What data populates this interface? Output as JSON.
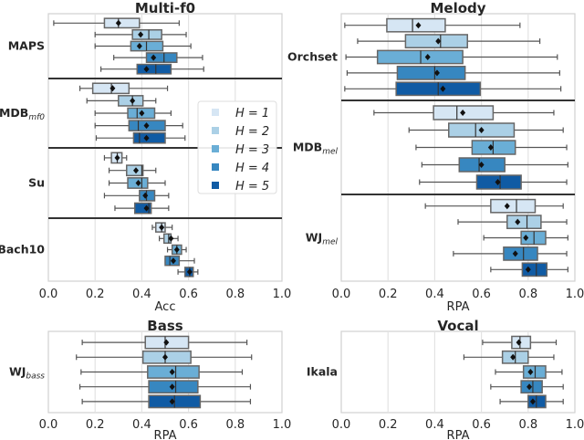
{
  "chart_data": [
    {
      "type": "box",
      "title": "Multi-f0",
      "xlabel": "Acc",
      "xlim": [
        0,
        1
      ],
      "xticks": [
        "0.0",
        "0.2",
        "0.4",
        "0.6",
        "0.8",
        "1.0"
      ],
      "grid": true,
      "box_fields": [
        "whisker_low",
        "q1",
        "median",
        "q3",
        "whisker_high",
        "mean"
      ],
      "groups": [
        {
          "label": "MAPS",
          "sub": "",
          "boxes": [
            [
              0.023,
              0.24,
              0.3,
              0.39,
              0.56,
              0.3
            ],
            [
              0.2,
              0.36,
              0.43,
              0.485,
              0.59,
              0.395
            ],
            [
              0.2,
              0.353,
              0.42,
              0.49,
              0.61,
              0.39
            ],
            [
              0.28,
              0.42,
              0.495,
              0.55,
              0.66,
              0.45
            ],
            [
              0.225,
              0.38,
              0.46,
              0.525,
              0.665,
              0.42
            ]
          ]
        },
        {
          "label": "MDB",
          "sub": "mf0",
          "boxes": [
            [
              0.135,
              0.19,
              0.27,
              0.345,
              0.51,
              0.275
            ],
            [
              0.165,
              0.3,
              0.36,
              0.405,
              0.46,
              0.36
            ],
            [
              0.2,
              0.34,
              0.38,
              0.455,
              0.525,
              0.4
            ],
            [
              0.2,
              0.345,
              0.385,
              0.5,
              0.575,
              0.42
            ],
            [
              0.205,
              0.365,
              0.39,
              0.5,
              0.585,
              0.42
            ]
          ]
        },
        {
          "label": "Su",
          "sub": "",
          "boxes": [
            [
              0.24,
              0.27,
              0.295,
              0.315,
              0.335,
              0.295
            ],
            [
              0.26,
              0.335,
              0.4,
              0.405,
              0.46,
              0.375
            ],
            [
              0.26,
              0.34,
              0.4,
              0.425,
              0.5,
              0.385
            ],
            [
              0.24,
              0.39,
              0.42,
              0.455,
              0.515,
              0.415
            ],
            [
              0.285,
              0.37,
              0.43,
              0.44,
              0.515,
              0.42
            ]
          ]
        },
        {
          "label": "Bach10",
          "sub": "",
          "boxes": [
            [
              0.445,
              0.46,
              0.485,
              0.5,
              0.53,
              0.485
            ],
            [
              0.475,
              0.495,
              0.515,
              0.525,
              0.555,
              0.525
            ],
            [
              0.51,
              0.53,
              0.55,
              0.57,
              0.59,
              0.55
            ],
            [
              0.5,
              0.5,
              0.52,
              0.56,
              0.625,
              0.535
            ],
            [
              0.555,
              0.585,
              0.605,
              0.62,
              0.64,
              0.605
            ]
          ]
        }
      ],
      "legend": {
        "position": "center-right",
        "labels": [
          "H = 1",
          "H = 2",
          "H = 3",
          "H = 4",
          "H = 5"
        ]
      }
    },
    {
      "type": "box",
      "title": "Melody",
      "xlabel": "RPA",
      "xlim": [
        0,
        1
      ],
      "xticks": [
        "0.0",
        "0.2",
        "0.4",
        "0.6",
        "0.8",
        "1.0"
      ],
      "grid": true,
      "box_fields": [
        "whisker_low",
        "q1",
        "median",
        "q3",
        "whisker_high",
        "mean"
      ],
      "groups": [
        {
          "label": "Orchset",
          "sub": "",
          "boxes": [
            [
              0.015,
              0.195,
              0.305,
              0.445,
              0.765,
              0.33
            ],
            [
              0.07,
              0.275,
              0.425,
              0.54,
              0.85,
              0.415
            ],
            [
              0.02,
              0.155,
              0.34,
              0.52,
              0.925,
              0.37
            ],
            [
              0.025,
              0.24,
              0.4,
              0.53,
              0.935,
              0.41
            ],
            [
              0.015,
              0.235,
              0.415,
              0.595,
              0.94,
              0.435
            ]
          ]
        },
        {
          "label": "MDB",
          "sub": "mel",
          "boxes": [
            [
              0.14,
              0.395,
              0.495,
              0.65,
              0.91,
              0.52
            ],
            [
              0.29,
              0.46,
              0.575,
              0.74,
              0.95,
              0.6
            ],
            [
              0.32,
              0.56,
              0.65,
              0.745,
              0.965,
              0.64
            ],
            [
              0.345,
              0.505,
              0.59,
              0.7,
              0.97,
              0.6
            ],
            [
              0.335,
              0.58,
              0.68,
              0.77,
              0.965,
              0.67
            ]
          ]
        },
        {
          "label": "WJ",
          "sub": "mel",
          "boxes": [
            [
              0.36,
              0.64,
              0.75,
              0.83,
              0.95,
              0.71
            ],
            [
              0.5,
              0.71,
              0.795,
              0.855,
              0.965,
              0.755
            ],
            [
              0.61,
              0.77,
              0.825,
              0.875,
              0.97,
              0.79
            ],
            [
              0.48,
              0.695,
              0.78,
              0.84,
              0.965,
              0.745
            ],
            [
              0.64,
              0.775,
              0.835,
              0.88,
              0.97,
              0.8
            ]
          ]
        }
      ]
    },
    {
      "type": "box",
      "title": "Bass",
      "xlabel": "RPA",
      "xlim": [
        0,
        1
      ],
      "xticks": [
        "0.0",
        "0.2",
        "0.4",
        "0.6",
        "0.8",
        "1.0"
      ],
      "grid": true,
      "box_fields": [
        "whisker_low",
        "q1",
        "median",
        "q3",
        "whisker_high",
        "mean"
      ],
      "groups": [
        {
          "label": "WJ",
          "sub": "bass",
          "boxes": [
            [
              0.145,
              0.415,
              0.5,
              0.6,
              0.85,
              0.505
            ],
            [
              0.12,
              0.405,
              0.5,
              0.61,
              0.87,
              0.5
            ],
            [
              0.14,
              0.425,
              0.545,
              0.645,
              0.83,
              0.53
            ],
            [
              0.135,
              0.43,
              0.545,
              0.64,
              0.865,
              0.53
            ],
            [
              0.145,
              0.43,
              0.54,
              0.65,
              0.865,
              0.53
            ]
          ]
        }
      ]
    },
    {
      "type": "box",
      "title": "Vocal",
      "xlabel": "RPA",
      "xlim": [
        0,
        1
      ],
      "xticks": [
        "0.0",
        "0.2",
        "0.4",
        "0.6",
        "0.8",
        "1.0"
      ],
      "grid": true,
      "box_fields": [
        "whisker_low",
        "q1",
        "median",
        "q3",
        "whisker_high",
        "mean"
      ],
      "groups": [
        {
          "label": "Ikala",
          "sub": "",
          "boxes": [
            [
              0.605,
              0.73,
              0.765,
              0.81,
              0.92,
              0.76
            ],
            [
              0.525,
              0.69,
              0.745,
              0.8,
              0.91,
              0.735
            ],
            [
              0.66,
              0.78,
              0.83,
              0.875,
              0.945,
              0.81
            ],
            [
              0.64,
              0.77,
              0.82,
              0.86,
              0.95,
              0.805
            ],
            [
              0.68,
              0.8,
              0.835,
              0.875,
              0.95,
              0.82
            ]
          ]
        }
      ]
    }
  ],
  "colors": {
    "H1": "#d6e6f4",
    "H2": "#abd0e6",
    "H3": "#6aaed6",
    "H4": "#3787c0",
    "H5": "#105ba4"
  }
}
